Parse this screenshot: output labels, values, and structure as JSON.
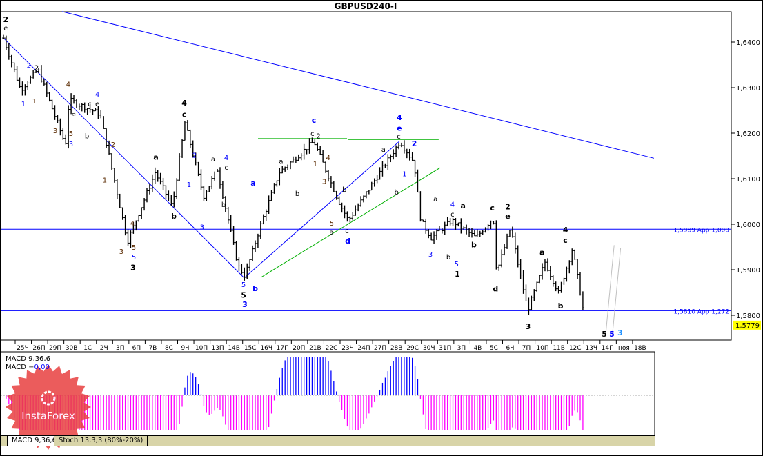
{
  "chart_data": {
    "type": "ohlc",
    "title": "GBPUSD240-I",
    "symbol": "GBPUSD",
    "timeframe": "H4",
    "price_ticks": [
      "1,6400",
      "1,6300",
      "1,6200",
      "1,6100",
      "1,6000",
      "1,5900",
      "1,5800"
    ],
    "price_tick_values": [
      1.64,
      1.63,
      1.62,
      1.61,
      1.6,
      1.59,
      1.58
    ],
    "ylim": [
      1.5735,
      1.6467
    ],
    "current_price": "1,5779",
    "current_price_value": 1.5779,
    "date_labels": [
      "25Ч",
      "26П",
      "29П",
      "30В",
      "1С",
      "2Ч",
      "3П",
      "6П",
      "7В",
      "8С",
      "9Ч",
      "10П",
      "13П",
      "14В",
      "15С",
      "16Ч",
      "17П",
      "20П",
      "21В",
      "22С",
      "23Ч",
      "24П",
      "27П",
      "28В",
      "29С",
      "30Ч",
      "31П",
      "3П",
      "4В",
      "5С",
      "6Ч",
      "7П",
      "10П",
      "11В",
      "12С",
      "13Ч",
      "14П",
      "ноя",
      "18В"
    ],
    "price_pivots_day_price": [
      [
        -1.19,
        1.6409
      ],
      [
        -0.13,
        1.6295
      ],
      [
        0.93,
        1.634
      ],
      [
        2.63,
        1.6174
      ],
      [
        2.85,
        1.6273
      ],
      [
        4.76,
        1.6242
      ],
      [
        6.45,
        1.5962
      ],
      [
        8.15,
        1.6114
      ],
      [
        9.21,
        1.6038
      ],
      [
        9.98,
        1.6223
      ],
      [
        11.13,
        1.6061
      ],
      [
        11.97,
        1.6121
      ],
      [
        13.25,
        1.5909
      ],
      [
        13.67,
        1.5886
      ],
      [
        14.73,
        1.6008
      ],
      [
        15.8,
        1.6114
      ],
      [
        17.92,
        1.6182
      ],
      [
        19.41,
        1.6053
      ],
      [
        20.04,
        1.6008
      ],
      [
        23.23,
        1.6182
      ],
      [
        24.08,
        1.6136
      ],
      [
        24.5,
        1.6008
      ],
      [
        25.14,
        1.597
      ],
      [
        26.41,
        1.6008
      ],
      [
        27.9,
        1.597
      ],
      [
        28.96,
        1.6015
      ],
      [
        29.17,
        1.5894
      ],
      [
        30.02,
        1.5992
      ],
      [
        31.08,
        1.5811
      ],
      [
        32.14,
        1.5917
      ],
      [
        32.99,
        1.5848
      ],
      [
        33.84,
        1.5947
      ],
      [
        34.61,
        1.5788
      ]
    ],
    "levels": [
      {
        "price": 1.5989,
        "label": "1,5989 App 1,000"
      },
      {
        "price": 1.581,
        "label": "1,5810 App 1,272"
      }
    ],
    "trendlines": [
      {
        "color": "#0000ff",
        "points": [
          [
            2.42,
            1.6467
          ],
          [
            38.85,
            1.6145
          ]
        ]
      },
      {
        "color": "#0000ff",
        "points": [
          [
            -1.19,
            1.6409
          ],
          [
            13.63,
            1.5882
          ]
        ]
      },
      {
        "color": "#0000ff",
        "points": [
          [
            13.63,
            1.5882
          ],
          [
            23.18,
            1.6182
          ]
        ]
      },
      {
        "color": "#00b000",
        "points": [
          [
            14.48,
            1.6188
          ],
          [
            19.96,
            1.6188
          ]
        ]
      },
      {
        "color": "#00b000",
        "points": [
          [
            20.04,
            1.6186
          ],
          [
            25.6,
            1.6186
          ]
        ]
      },
      {
        "color": "#00b000",
        "points": [
          [
            14.65,
            1.5883
          ],
          [
            25.69,
            1.6124
          ]
        ]
      },
      {
        "color": "#c0c0c0",
        "points": [
          [
            35.9,
            1.5765
          ],
          [
            36.4,
            1.5954
          ]
        ]
      },
      {
        "color": "#c0c0c0",
        "points": [
          [
            36.3,
            1.576
          ],
          [
            36.8,
            1.5948
          ]
        ]
      }
    ],
    "colors": {
      "black": "#000000",
      "blue": "#0000ff",
      "brown": "#5a2a00",
      "cyan": "#1e90ff",
      "macd_pos": "#0000ff",
      "macd_neg": "#ff00ff"
    },
    "wave_labels": [
      [
        -1.05,
        1.645,
        "2",
        "black",
        1
      ],
      [
        -1.05,
        1.6432,
        "e",
        "black",
        0
      ],
      [
        0.38,
        1.635,
        "2",
        "blue",
        0
      ],
      [
        0.85,
        1.6345,
        "2",
        "black",
        0
      ],
      [
        0.04,
        1.6265,
        "1",
        "blue",
        0
      ],
      [
        0.72,
        1.6271,
        "1",
        "brown",
        0
      ],
      [
        2.8,
        1.6308,
        "4",
        "brown",
        0
      ],
      [
        4.59,
        1.6286,
        "4",
        "blue",
        0
      ],
      [
        4.12,
        1.6265,
        "c",
        "black",
        0
      ],
      [
        4.59,
        1.6265,
        "e",
        "black",
        0
      ],
      [
        2.0,
        1.6206,
        "3",
        "brown",
        0
      ],
      [
        2.97,
        1.62,
        "5",
        "brown",
        0
      ],
      [
        2.97,
        1.6177,
        "3",
        "blue",
        0
      ],
      [
        3.95,
        1.6195,
        "b",
        "black",
        0
      ],
      [
        3.14,
        1.6245,
        "a",
        "black",
        0
      ],
      [
        5.56,
        1.6176,
        "2",
        "brown",
        0
      ],
      [
        5.05,
        1.6098,
        "1",
        "brown",
        0
      ],
      [
        6.75,
        1.6003,
        "4",
        "brown",
        0
      ],
      [
        6.84,
        1.595,
        "5",
        "brown",
        0
      ],
      [
        6.84,
        1.5929,
        "5",
        "blue",
        0
      ],
      [
        6.79,
        1.5905,
        "3",
        "black",
        1
      ],
      [
        6.07,
        1.5941,
        "3",
        "brown",
        0
      ],
      [
        8.2,
        1.6148,
        "a",
        "black",
        1
      ],
      [
        9.3,
        1.6018,
        "b",
        "black",
        1
      ],
      [
        9.94,
        1.6267,
        "4",
        "black",
        1
      ],
      [
        9.94,
        1.6242,
        "c",
        "black",
        1
      ],
      [
        10.57,
        1.6152,
        "2",
        "blue",
        0
      ],
      [
        10.23,
        1.6088,
        "1",
        "blue",
        0
      ],
      [
        11.04,
        1.5995,
        "3",
        "blue",
        0
      ],
      [
        11.72,
        1.6144,
        "a",
        "black",
        0
      ],
      [
        12.53,
        1.6147,
        "4",
        "blue",
        0
      ],
      [
        12.53,
        1.6126,
        "c",
        "black",
        0
      ],
      [
        12.36,
        1.6044,
        "b",
        "black",
        0
      ],
      [
        14.18,
        1.6091,
        "a",
        "blue",
        1
      ],
      [
        13.59,
        1.5868,
        "5",
        "blue",
        0
      ],
      [
        13.59,
        1.5845,
        "5",
        "black",
        1
      ],
      [
        13.67,
        1.5824,
        "3",
        "blue",
        1
      ],
      [
        14.31,
        1.5859,
        "b",
        "blue",
        1
      ],
      [
        17.92,
        1.6229,
        "c",
        "blue",
        1
      ],
      [
        17.83,
        1.62,
        "c",
        "black",
        0
      ],
      [
        18.2,
        1.6195,
        "2",
        "black",
        0
      ],
      [
        18.0,
        1.6133,
        "1",
        "brown",
        0
      ],
      [
        18.8,
        1.6147,
        "4",
        "brown",
        0
      ],
      [
        15.9,
        1.6139,
        "a",
        "black",
        0
      ],
      [
        16.9,
        1.6068,
        "b",
        "black",
        0
      ],
      [
        18.56,
        1.6095,
        "3",
        "brown",
        0
      ],
      [
        19.8,
        1.6077,
        "b",
        "black",
        0
      ],
      [
        19.02,
        1.6003,
        "5",
        "brown",
        0
      ],
      [
        19.0,
        1.5983,
        "a",
        "black",
        0
      ],
      [
        19.96,
        1.5986,
        "c",
        "black",
        0
      ],
      [
        20.0,
        1.5964,
        "d",
        "blue",
        1
      ],
      [
        23.18,
        1.6235,
        "4",
        "blue",
        1
      ],
      [
        23.18,
        1.6211,
        "e",
        "blue",
        1
      ],
      [
        23.14,
        1.6194,
        "c",
        "black",
        0
      ],
      [
        22.2,
        1.6165,
        "a",
        "black",
        0
      ],
      [
        24.1,
        1.6177,
        "2",
        "blue",
        1
      ],
      [
        23.5,
        1.6111,
        "1",
        "blue",
        0
      ],
      [
        23.0,
        1.6071,
        "b",
        "black",
        0
      ],
      [
        25.4,
        1.6056,
        "a",
        "black",
        0
      ],
      [
        26.45,
        1.6045,
        "4",
        "blue",
        0
      ],
      [
        26.45,
        1.6023,
        "c",
        "black",
        0
      ],
      [
        25.1,
        1.5935,
        "3",
        "blue",
        0
      ],
      [
        26.2,
        1.5929,
        "b",
        "black",
        0
      ],
      [
        26.7,
        1.5914,
        "5",
        "blue",
        0
      ],
      [
        26.75,
        1.5891,
        "1",
        "black",
        1
      ],
      [
        27.1,
        1.6041,
        "a",
        "black",
        1
      ],
      [
        27.77,
        1.5955,
        "b",
        "black",
        1
      ],
      [
        28.9,
        1.6036,
        "c",
        "black",
        1
      ],
      [
        29.85,
        1.6039,
        "2",
        "black",
        1
      ],
      [
        29.85,
        1.6018,
        "e",
        "black",
        1
      ],
      [
        29.1,
        1.5858,
        "d",
        "black",
        1
      ],
      [
        31.1,
        1.5776,
        "3",
        "black",
        1
      ],
      [
        31.97,
        1.5939,
        "a",
        "black",
        1
      ],
      [
        33.1,
        1.5821,
        "b",
        "black",
        1
      ],
      [
        33.4,
        1.5988,
        "4",
        "black",
        1
      ],
      [
        33.4,
        1.5965,
        "c",
        "black",
        1
      ],
      [
        35.8,
        1.5759,
        "5",
        "black",
        1
      ],
      [
        36.26,
        1.5759,
        "5",
        "blue",
        1
      ],
      [
        36.77,
        1.5762,
        "3",
        "cyan",
        1
      ]
    ],
    "indicator": {
      "name": "MACD 9,36,6",
      "value_label": "MACD =",
      "value": "0,00"
    }
  },
  "tabs": [
    "MACD 9,36,6",
    "Stoch 13,3,3 (80%-20%)"
  ],
  "watermark": "InstaForex"
}
